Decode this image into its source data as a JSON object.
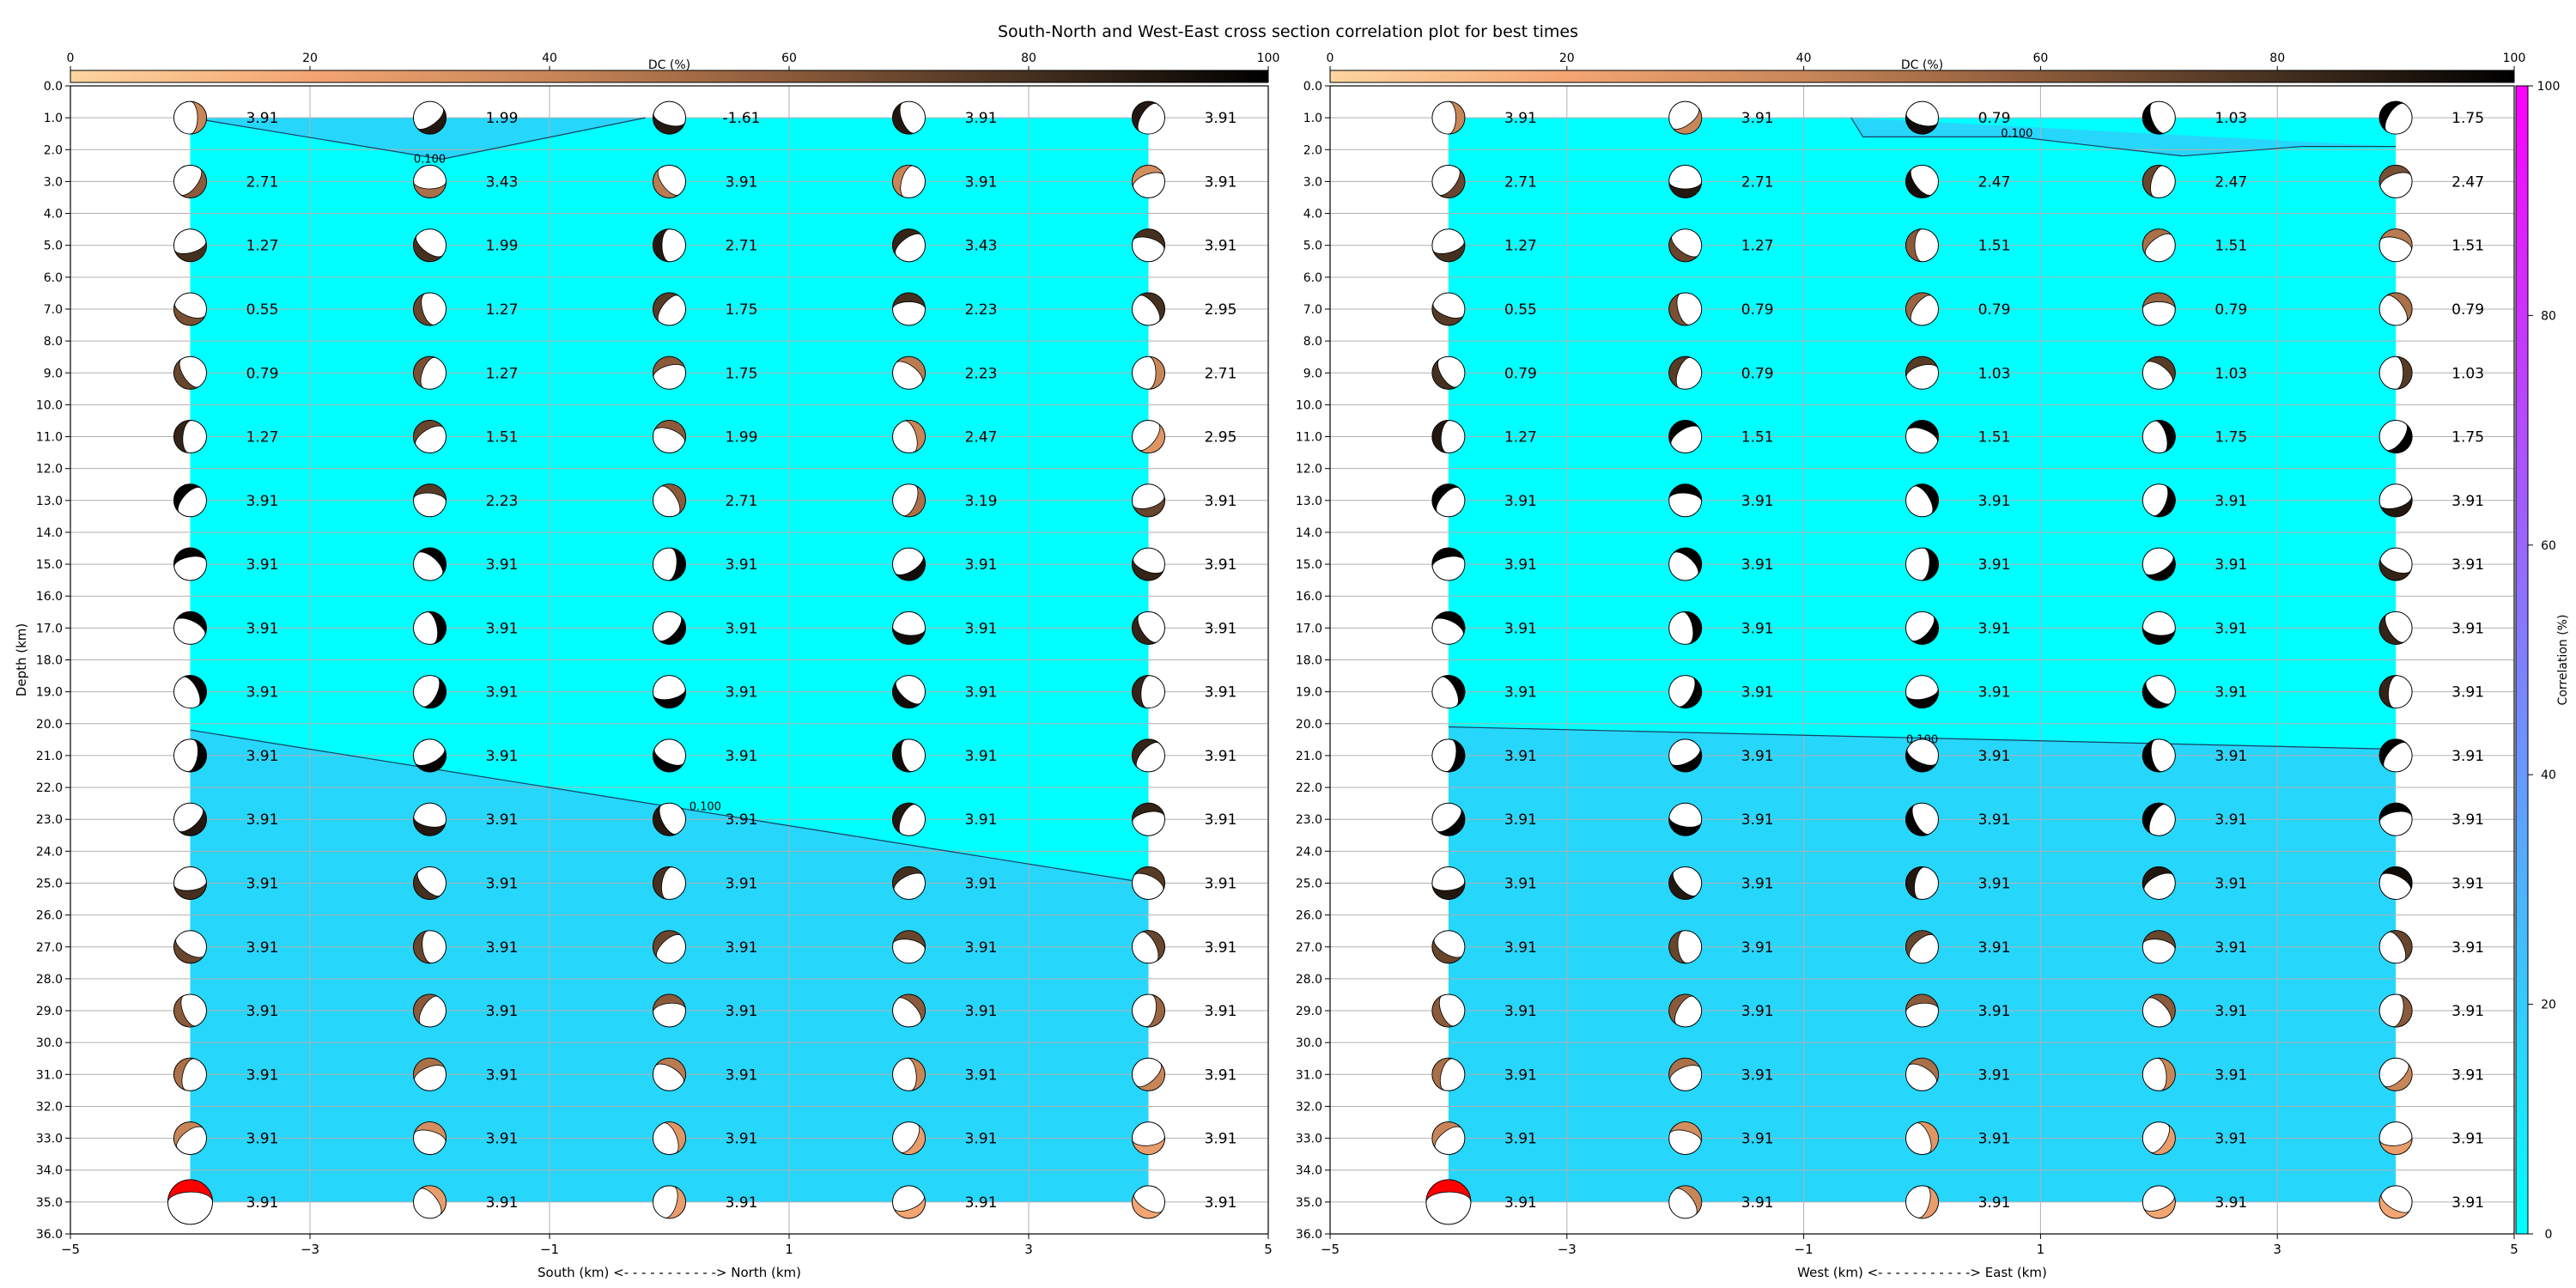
{
  "figure": {
    "title": "South-North and West-East cross section correlation plot for best times"
  },
  "dc_colorbar": {
    "label": "DC (%)",
    "ticks": [
      "0",
      "20",
      "40",
      "60",
      "80",
      "100"
    ],
    "colors": [
      "#fdd5a0",
      "#f3a572",
      "#c88658",
      "#8a5a3a",
      "#45301f",
      "#000000"
    ]
  },
  "correlation_colorbar": {
    "label": "Correlation (%)",
    "ticks": [
      "0",
      "20",
      "40",
      "60",
      "80",
      "100"
    ],
    "colors": [
      "#00ffff",
      "#ff00ff"
    ]
  },
  "y_axis": {
    "label": "Depth (km)",
    "ticks": [
      "0.0",
      "1.0",
      "2.0",
      "3.0",
      "4.0",
      "5.0",
      "6.0",
      "7.0",
      "8.0",
      "9.0",
      "10.0",
      "11.0",
      "12.0",
      "13.0",
      "14.0",
      "15.0",
      "16.0",
      "17.0",
      "18.0",
      "19.0",
      "20.0",
      "21.0",
      "22.0",
      "23.0",
      "24.0",
      "25.0",
      "26.0",
      "27.0",
      "28.0",
      "29.0",
      "30.0",
      "31.0",
      "32.0",
      "33.0",
      "34.0",
      "35.0",
      "36.0"
    ],
    "range": [
      0,
      36
    ],
    "inverted": true
  },
  "chart_data": [
    {
      "type": "heatmap",
      "panel": "south-north",
      "xlabel": "South (km) <- - - - - - - - - - -> North (km)",
      "xticks": [
        "−5",
        "−3",
        "−1",
        "1",
        "3",
        "5"
      ],
      "xlim": [
        -5,
        5
      ],
      "ylim": [
        36,
        0
      ],
      "grid": true,
      "x": [
        -4,
        -2,
        0,
        2,
        4
      ],
      "depths": [
        1,
        3,
        5,
        7,
        9,
        11,
        13,
        15,
        17,
        19,
        21,
        23,
        25,
        27,
        29,
        31,
        33,
        35
      ],
      "time_labels": [
        [
          "3.91",
          "1.99",
          "-1.61",
          "3.91",
          "3.91"
        ],
        [
          "2.71",
          "3.43",
          "3.91",
          "3.91",
          "3.91"
        ],
        [
          "1.27",
          "1.99",
          "2.71",
          "3.43",
          "3.91"
        ],
        [
          "0.55",
          "1.27",
          "1.75",
          "2.23",
          "2.95"
        ],
        [
          "0.79",
          "1.27",
          "1.75",
          "2.23",
          "2.71"
        ],
        [
          "1.27",
          "1.51",
          "1.99",
          "2.47",
          "2.95"
        ],
        [
          "3.91",
          "2.23",
          "2.71",
          "3.19",
          "3.91"
        ],
        [
          "3.91",
          "3.91",
          "3.91",
          "3.91",
          "3.91"
        ],
        [
          "3.91",
          "3.91",
          "3.91",
          "3.91",
          "3.91"
        ],
        [
          "3.91",
          "3.91",
          "3.91",
          "3.91",
          "3.91"
        ],
        [
          "3.91",
          "3.91",
          "3.91",
          "3.91",
          "3.91"
        ],
        [
          "3.91",
          "3.91",
          "3.91",
          "3.91",
          "3.91"
        ],
        [
          "3.91",
          "3.91",
          "3.91",
          "3.91",
          "3.91"
        ],
        [
          "3.91",
          "3.91",
          "3.91",
          "3.91",
          "3.91"
        ],
        [
          "3.91",
          "3.91",
          "3.91",
          "3.91",
          "3.91"
        ],
        [
          "3.91",
          "3.91",
          "3.91",
          "3.91",
          "3.91"
        ],
        [
          "3.91",
          "3.91",
          "3.91",
          "3.91",
          "3.91"
        ],
        [
          "3.91",
          "3.91",
          "3.91",
          "3.91",
          "3.91"
        ]
      ],
      "dc_percent": [
        [
          40,
          90,
          90,
          90,
          90
        ],
        [
          60,
          50,
          45,
          40,
          35
        ],
        [
          80,
          80,
          90,
          85,
          80
        ],
        [
          65,
          70,
          75,
          80,
          80
        ],
        [
          70,
          65,
          60,
          45,
          40
        ],
        [
          85,
          70,
          60,
          40,
          30
        ],
        [
          100,
          75,
          60,
          50,
          70
        ],
        [
          100,
          100,
          100,
          95,
          85
        ],
        [
          100,
          100,
          100,
          95,
          85
        ],
        [
          100,
          100,
          100,
          95,
          85
        ],
        [
          100,
          100,
          100,
          95,
          85
        ],
        [
          90,
          90,
          90,
          90,
          85
        ],
        [
          80,
          80,
          80,
          80,
          75
        ],
        [
          70,
          70,
          70,
          70,
          70
        ],
        [
          60,
          60,
          60,
          60,
          55
        ],
        [
          50,
          50,
          45,
          40,
          40
        ],
        [
          40,
          35,
          30,
          25,
          25
        ],
        [
          0,
          25,
          25,
          20,
          20
        ]
      ],
      "best_marker": {
        "x": -4,
        "depth": 35,
        "color": "#ff0000"
      },
      "contour": {
        "level_label": "0.100",
        "lines": [
          {
            "x": [
              -0.2,
              -1.9,
              -4
            ],
            "y": [
              1.0,
              2.3,
              1.0
            ]
          },
          {
            "x": [
              -4,
              4
            ],
            "y": [
              20.2,
              25.0
            ]
          }
        ],
        "label_positions": [
          {
            "x": -2.0,
            "y": 2.3
          },
          {
            "x": 0.3,
            "y": 22.6
          }
        ]
      },
      "correlation_fill": {
        "above_contour": 0,
        "below_contour": 8,
        "unit": "%"
      }
    },
    {
      "type": "heatmap",
      "panel": "west-east",
      "xlabel": "West (km) <- - - - - - - - - - -> East (km)",
      "xticks": [
        "−5",
        "−3",
        "−1",
        "1",
        "3",
        "5"
      ],
      "xlim": [
        -5,
        5
      ],
      "ylim": [
        36,
        0
      ],
      "grid": true,
      "x": [
        -4,
        -2,
        0,
        2,
        4
      ],
      "depths": [
        1,
        3,
        5,
        7,
        9,
        11,
        13,
        15,
        17,
        19,
        21,
        23,
        25,
        27,
        29,
        31,
        33,
        35
      ],
      "time_labels": [
        [
          "3.91",
          "3.91",
          "0.79",
          "1.03",
          "1.75"
        ],
        [
          "2.71",
          "2.71",
          "2.47",
          "2.47",
          "2.47"
        ],
        [
          "1.27",
          "1.27",
          "1.51",
          "1.51",
          "1.51"
        ],
        [
          "0.55",
          "0.79",
          "0.79",
          "0.79",
          "0.79"
        ],
        [
          "0.79",
          "0.79",
          "1.03",
          "1.03",
          "1.03"
        ],
        [
          "1.27",
          "1.51",
          "1.51",
          "1.75",
          "1.75"
        ],
        [
          "3.91",
          "3.91",
          "3.91",
          "3.91",
          "3.91"
        ],
        [
          "3.91",
          "3.91",
          "3.91",
          "3.91",
          "3.91"
        ],
        [
          "3.91",
          "3.91",
          "3.91",
          "3.91",
          "3.91"
        ],
        [
          "3.91",
          "3.91",
          "3.91",
          "3.91",
          "3.91"
        ],
        [
          "3.91",
          "3.91",
          "3.91",
          "3.91",
          "3.91"
        ],
        [
          "3.91",
          "3.91",
          "3.91",
          "3.91",
          "3.91"
        ],
        [
          "3.91",
          "3.91",
          "3.91",
          "3.91",
          "3.91"
        ],
        [
          "3.91",
          "3.91",
          "3.91",
          "3.91",
          "3.91"
        ],
        [
          "3.91",
          "3.91",
          "3.91",
          "3.91",
          "3.91"
        ],
        [
          "3.91",
          "3.91",
          "3.91",
          "3.91",
          "3.91"
        ],
        [
          "3.91",
          "3.91",
          "3.91",
          "3.91",
          "3.91"
        ],
        [
          "3.91",
          "3.91",
          "3.91",
          "3.91",
          "3.91"
        ]
      ],
      "dc_percent": [
        [
          40,
          40,
          95,
          100,
          100
        ],
        [
          70,
          90,
          95,
          70,
          65
        ],
        [
          80,
          70,
          60,
          50,
          45
        ],
        [
          75,
          65,
          55,
          55,
          50
        ],
        [
          80,
          75,
          75,
          75,
          75
        ],
        [
          90,
          100,
          100,
          100,
          100
        ],
        [
          100,
          100,
          100,
          100,
          90
        ],
        [
          100,
          100,
          100,
          100,
          85
        ],
        [
          100,
          100,
          100,
          100,
          85
        ],
        [
          100,
          100,
          100,
          100,
          85
        ],
        [
          100,
          100,
          100,
          100,
          100
        ],
        [
          100,
          100,
          100,
          100,
          100
        ],
        [
          90,
          90,
          90,
          90,
          95
        ],
        [
          70,
          70,
          70,
          70,
          70
        ],
        [
          60,
          60,
          60,
          60,
          60
        ],
        [
          50,
          50,
          50,
          40,
          40
        ],
        [
          40,
          35,
          30,
          25,
          25
        ],
        [
          0,
          40,
          25,
          20,
          20
        ]
      ],
      "best_marker": {
        "x": -4,
        "depth": 35,
        "color": "#ff0000"
      },
      "contour": {
        "level_label": "0.100",
        "lines": [
          {
            "x": [
              -0.6,
              -0.5,
              0.8,
              2.2,
              3.2,
              4
            ],
            "y": [
              1.0,
              1.6,
              1.6,
              2.2,
              1.9,
              1.9
            ]
          },
          {
            "x": [
              -4,
              4
            ],
            "y": [
              20.1,
              20.8
            ]
          }
        ],
        "label_positions": [
          {
            "x": 0.8,
            "y": 1.5
          },
          {
            "x": 0.0,
            "y": 20.5
          }
        ]
      },
      "correlation_fill": {
        "above_contour": 0,
        "below_contour": 8,
        "unit": "%"
      }
    }
  ]
}
